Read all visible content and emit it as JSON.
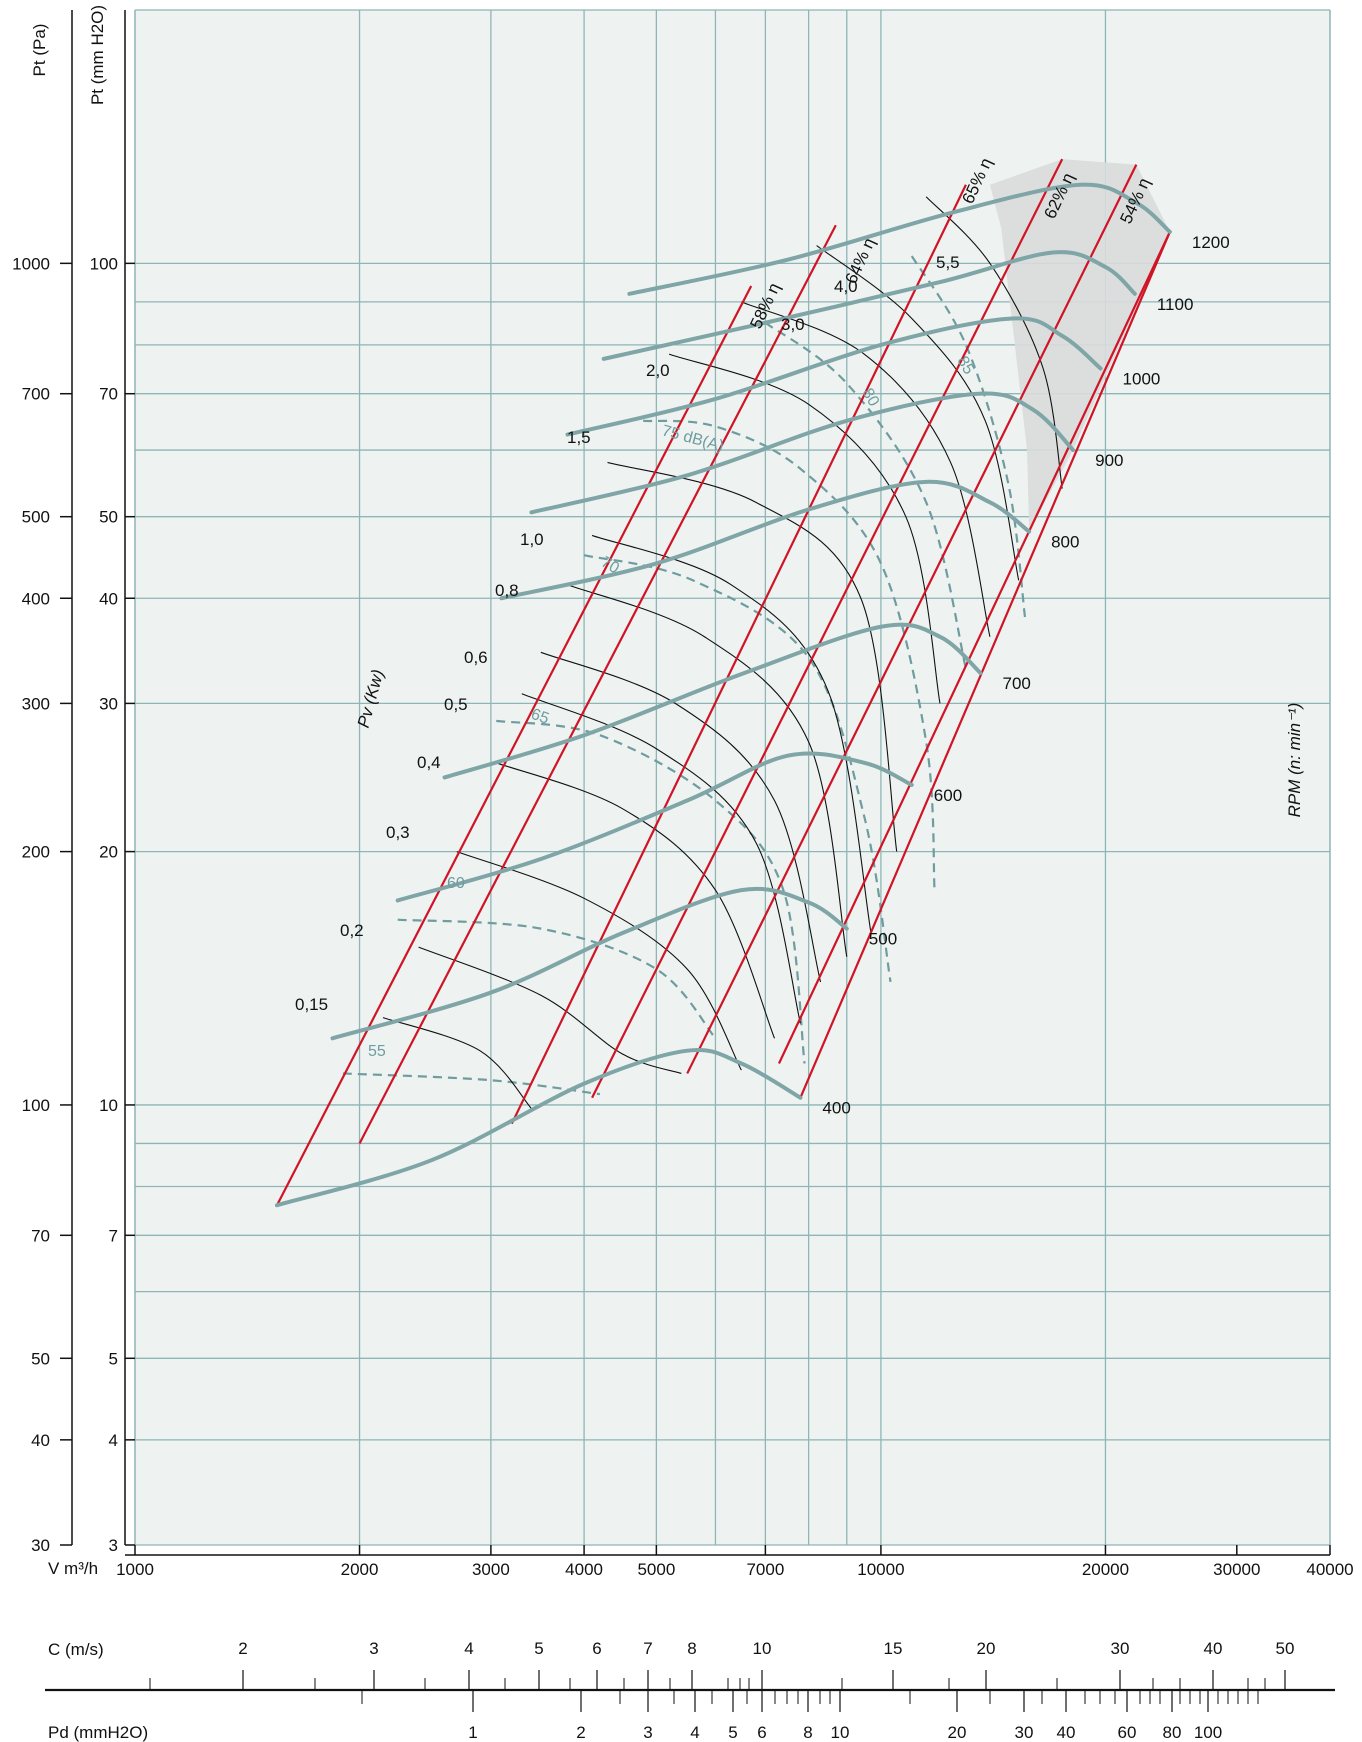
{
  "chart_data": {
    "type": "line",
    "x_axis": {
      "label": "V m³/h",
      "scale": "log",
      "range": [
        1000,
        40000
      ],
      "ticks": [
        "1000",
        "2000",
        "3000",
        "4000",
        "5000",
        "7000",
        "10000",
        "20000",
        "30000",
        "40000"
      ]
    },
    "y_axis_left": {
      "label": "Pt (Pa)",
      "scale": "log",
      "range": [
        30,
        2000
      ],
      "ticks": [
        "30",
        "40",
        "50",
        "70",
        "100",
        "200",
        "300",
        "400",
        "500",
        "700",
        "1000"
      ]
    },
    "y_axis_mmH2O": {
      "label": "Pt (mm H2O)",
      "scale": "log",
      "range": [
        3,
        200
      ],
      "ticks": [
        "3",
        "4",
        "5",
        "7",
        "10",
        "20",
        "30",
        "40",
        "50",
        "70",
        "100"
      ]
    },
    "rpm_label": "RPM (n: min⁻¹)",
    "power_label": "Pv (Kw)",
    "fan_curves": [
      {
        "rpm": "400",
        "points": [
          [
            1550,
            7.6
          ],
          [
            2500,
            8.6
          ],
          [
            4000,
            10.6
          ],
          [
            5500,
            11.6
          ],
          [
            6500,
            11.2
          ],
          [
            7800,
            10.2
          ]
        ]
      },
      {
        "rpm": "500",
        "points": [
          [
            1840,
            12.0
          ],
          [
            3000,
            13.6
          ],
          [
            4500,
            16.0
          ],
          [
            6500,
            18.0
          ],
          [
            8000,
            17.4
          ],
          [
            9000,
            16.2
          ]
        ]
      },
      {
        "rpm": "600",
        "points": [
          [
            2250,
            17.5
          ],
          [
            3500,
            19.6
          ],
          [
            5500,
            23.0
          ],
          [
            7500,
            26.0
          ],
          [
            9500,
            25.5
          ],
          [
            11000,
            24.0
          ]
        ]
      },
      {
        "rpm": "700",
        "points": [
          [
            2600,
            24.5
          ],
          [
            4000,
            27.5
          ],
          [
            6500,
            32.5
          ],
          [
            10000,
            37.0
          ],
          [
            12000,
            36.0
          ],
          [
            13600,
            32.6
          ]
        ]
      },
      {
        "rpm": "800",
        "points": [
          [
            3100,
            40.0
          ],
          [
            5000,
            44.0
          ],
          [
            8000,
            51.0
          ],
          [
            11500,
            55.0
          ],
          [
            14000,
            52.0
          ],
          [
            15800,
            48.0
          ]
        ]
      },
      {
        "rpm": "900",
        "points": [
          [
            3400,
            50.6
          ],
          [
            5500,
            56.0
          ],
          [
            9000,
            65.0
          ],
          [
            13500,
            70.0
          ],
          [
            16000,
            67.0
          ],
          [
            18100,
            60.0
          ]
        ]
      },
      {
        "rpm": "1000",
        "points": [
          [
            3800,
            62.6
          ],
          [
            6000,
            69.0
          ],
          [
            10000,
            80.0
          ],
          [
            15000,
            86.0
          ],
          [
            17500,
            82.0
          ],
          [
            19700,
            75.0
          ]
        ]
      },
      {
        "rpm": "1100",
        "points": [
          [
            4250,
            77.0
          ],
          [
            7000,
            85.0
          ],
          [
            12000,
            95.0
          ],
          [
            17000,
            103.0
          ],
          [
            20000,
            99.0
          ],
          [
            21900,
            92.0
          ]
        ]
      },
      {
        "rpm": "1200",
        "points": [
          [
            4600,
            92.0
          ],
          [
            7500,
            101.0
          ],
          [
            12500,
            115.0
          ],
          [
            18500,
            124.0
          ],
          [
            22000,
            118.0
          ],
          [
            24400,
            109.0
          ]
        ]
      }
    ],
    "efficiency_lines": [
      {
        "name": "58% η",
        "points": [
          [
            1550,
            7.6
          ],
          [
            6700,
            94.0
          ]
        ]
      },
      {
        "name": "64% η",
        "points": [
          [
            2000,
            9.0
          ],
          [
            8700,
            111.0
          ]
        ]
      },
      {
        "name": "65% η",
        "points": [
          [
            3200,
            9.5
          ],
          [
            13000,
            124.0
          ]
        ]
      },
      {
        "name": "62% η",
        "points": [
          [
            4100,
            10.2
          ],
          [
            17500,
            133.0
          ]
        ]
      },
      {
        "name": "54% η",
        "points": [
          [
            5500,
            10.9
          ],
          [
            22000,
            131.0
          ]
        ]
      },
      {
        "name": "",
        "points": [
          [
            7300,
            11.2
          ],
          [
            24400,
            109.0
          ]
        ]
      },
      {
        "name": "",
        "points": [
          [
            7800,
            10.2
          ],
          [
            24400,
            109.0
          ]
        ]
      }
    ],
    "power_labels": [
      "0,15",
      "0,2",
      "0,3",
      "0,4",
      "0,5",
      "0,6",
      "0,8",
      "1,0",
      "1,5",
      "2,0",
      "3,0",
      "4,0",
      "5,5"
    ],
    "noise_labels": [
      "55",
      "60",
      "65",
      "70",
      "75 dB(A)",
      "80",
      "85"
    ],
    "velocity_scale": {
      "label": "C (m/s)",
      "ticks": [
        "2",
        "3",
        "4",
        "5",
        "6",
        "7",
        "8",
        "10",
        "15",
        "20",
        "30",
        "40",
        "50"
      ]
    },
    "dynamic_pressure_scale": {
      "label": "Pd (mmH2O)",
      "ticks": [
        "1",
        "2",
        "3",
        "4",
        "5",
        "6",
        "8",
        "10",
        "20",
        "30",
        "40",
        "60",
        "80",
        "100"
      ]
    },
    "grid": true,
    "colors": {
      "background": "#eef3f1",
      "grid": "#8fb5b6",
      "fan_curve": "#7fa5a7",
      "efficiency": "#d01426",
      "power": "#111111",
      "noise": "#6f9c9f",
      "shade": "#d9dcdc"
    }
  }
}
